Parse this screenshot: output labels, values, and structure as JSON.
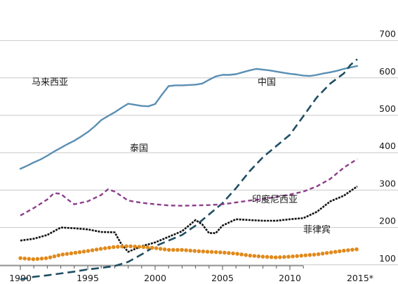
{
  "chart_data": {
    "type": "line",
    "title": "",
    "xlabel": "",
    "ylabel": "",
    "xlim": [
      1990,
      2015
    ],
    "ylim": [
      0,
      700
    ],
    "grid": true,
    "x_ticks": [
      "1990",
      "1995",
      "2000",
      "2005",
      "2010",
      "2015*"
    ],
    "y_ticks": [
      "100",
      "200",
      "300",
      "400",
      "500",
      "600",
      "700"
    ],
    "series": [
      {
        "name": "马来西亚",
        "color": "#5a8fb3",
        "dash": "solid",
        "x": [
          1990,
          1990.5,
          1991,
          1991.5,
          1992,
          1992.5,
          1993,
          1993.5,
          1994,
          1994.5,
          1995,
          1995.5,
          1996,
          1996.5,
          1997,
          1997.5,
          1998,
          1998.5,
          1999,
          1999.5,
          2000,
          2000.5,
          2001,
          2001.5,
          2002,
          2002.5,
          2003,
          2003.5,
          2004,
          2004.5,
          2005,
          2005.5,
          2006,
          2006.5,
          2007,
          2007.5,
          2008,
          2008.5,
          2009,
          2009.5,
          2010,
          2010.5,
          2011,
          2011.5,
          2012,
          2012.5,
          2013,
          2013.5,
          2014,
          2014.5,
          2015
        ],
        "values": [
          357,
          365,
          374,
          382,
          392,
          403,
          413,
          423,
          432,
          443,
          455,
          470,
          487,
          498,
          508,
          520,
          531,
          528,
          525,
          524,
          530,
          555,
          578,
          580,
          580,
          581,
          582,
          585,
          595,
          604,
          608,
          608,
          610,
          615,
          620,
          624,
          622,
          620,
          617,
          614,
          611,
          609,
          606,
          605,
          608,
          612,
          615,
          619,
          624,
          628,
          632
        ]
      },
      {
        "name": "中国",
        "color": "#1f4e63",
        "dash": "long-dash",
        "x": [
          1990,
          1991,
          1992,
          1993,
          1994,
          1995,
          1996,
          1997,
          1998,
          1999,
          2000,
          2001,
          2002,
          2003,
          2004,
          2005,
          2006,
          2007,
          2008,
          2009,
          2010,
          2011,
          2012,
          2013,
          2014,
          2014.5,
          2015
        ],
        "values": [
          61,
          68,
          72,
          77,
          82,
          88,
          92,
          97,
          108,
          128,
          150,
          165,
          180,
          205,
          235,
          265,
          305,
          350,
          388,
          418,
          448,
          498,
          548,
          585,
          612,
          635,
          650
        ]
      },
      {
        "name": "泰国",
        "color": "#8b3f8c",
        "dash": "dash",
        "x": [
          1990,
          1991,
          1992,
          1992.5,
          1993,
          1993.5,
          1994,
          1995,
          1996,
          1996.5,
          1997,
          1998,
          1999,
          2000,
          2001,
          2002,
          2003,
          2004,
          2005,
          2006,
          2007,
          2008,
          2009,
          2010,
          2011,
          2012,
          2013,
          2014,
          2015
        ],
        "values": [
          232,
          252,
          275,
          292,
          290,
          275,
          262,
          270,
          287,
          302,
          296,
          272,
          266,
          262,
          259,
          258,
          259,
          260,
          262,
          267,
          272,
          276,
          282,
          288,
          296,
          310,
          330,
          360,
          383
        ]
      },
      {
        "name": "印度尼西亚",
        "color": "#111111",
        "dash": "dense-dash",
        "x": [
          1990,
          1991,
          1992,
          1993,
          1994,
          1995,
          1996,
          1997,
          1997.5,
          1998,
          1999,
          2000,
          2001,
          2002,
          2003,
          2003.5,
          2004,
          2004.5,
          2005,
          2006,
          2007,
          2008,
          2009,
          2010,
          2011,
          2012,
          2013,
          2014,
          2015
        ],
        "values": [
          165,
          170,
          180,
          200,
          198,
          195,
          188,
          187,
          155,
          135,
          150,
          160,
          175,
          190,
          220,
          208,
          185,
          185,
          205,
          222,
          220,
          218,
          218,
          222,
          225,
          242,
          270,
          285,
          310
        ]
      },
      {
        "name": "菲律宾",
        "color": "#e08a1c",
        "dash": "dots",
        "x": [
          1990,
          1991,
          1992,
          1993,
          1994,
          1995,
          1996,
          1997,
          1998,
          1999,
          2000,
          2001,
          2002,
          2003,
          2004,
          2005,
          2006,
          2007,
          2008,
          2009,
          2010,
          2011,
          2012,
          2013,
          2014,
          2015
        ],
        "values": [
          118,
          115,
          118,
          127,
          132,
          137,
          143,
          148,
          150,
          148,
          145,
          140,
          140,
          137,
          135,
          133,
          130,
          125,
          122,
          120,
          122,
          125,
          128,
          133,
          138,
          142
        ]
      }
    ]
  }
}
